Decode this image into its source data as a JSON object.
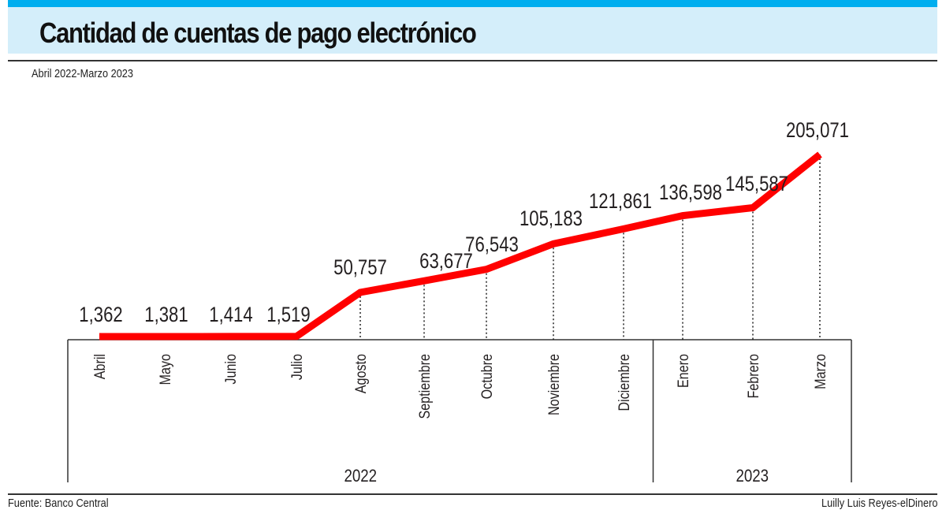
{
  "header": {
    "title": "Cantidad de cuentas de pago electrónico",
    "subtitle": "Abril 2022-Marzo 2023"
  },
  "footer": {
    "source": "Fuente: Banco Central",
    "credit": "Luilly Luis Reyes-elDinero"
  },
  "colors": {
    "accent_strip": "#00aeef",
    "title_background": "#d4eefa",
    "line": "#ff0000",
    "text": "#231f20"
  },
  "chart_data": {
    "type": "line",
    "title": "Cantidad de cuentas de pago electrónico",
    "subtitle": "Abril 2022-Marzo 2023",
    "xlabel": "",
    "ylabel": "",
    "categories": [
      "Abril",
      "Mayo",
      "Junio",
      "Julio",
      "Agosto",
      "Septiembre",
      "Octubre",
      "Noviembre",
      "Diciembre",
      "Enero",
      "Febrero",
      "Marzo"
    ],
    "values": [
      1362,
      1381,
      1414,
      1519,
      50757,
      63677,
      76543,
      105183,
      121861,
      136598,
      145587,
      205071
    ],
    "value_labels": [
      "1,362",
      "1,381",
      "1,414",
      "1,519",
      "50,757",
      "63,677",
      "76,543",
      "105,183",
      "121,861",
      "136,598",
      "145,587",
      "205,071"
    ],
    "year_groups": [
      {
        "label": "2022",
        "count": 9
      },
      {
        "label": "2023",
        "count": 3
      }
    ],
    "ylim": [
      0,
      205071
    ],
    "grid": false,
    "legend": "none",
    "drop_lines": "dotted"
  }
}
